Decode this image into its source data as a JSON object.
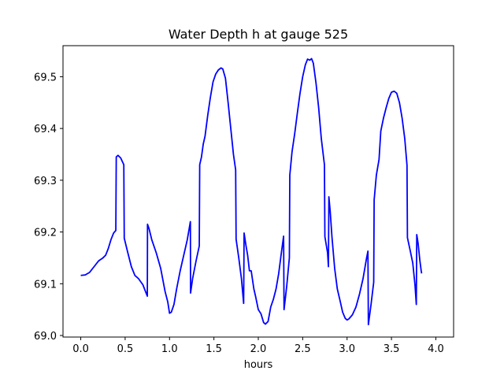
{
  "chart_data": {
    "type": "line",
    "title": "Water Depth h at gauge 525",
    "xlabel": "hours",
    "ylabel": "",
    "xlim": [
      -0.2,
      4.2
    ],
    "ylim": [
      68.997,
      69.56
    ],
    "grid": false,
    "xticks": [
      0.0,
      0.5,
      1.0,
      1.5,
      2.0,
      2.5,
      3.0,
      3.5,
      4.0
    ],
    "xtick_labels": [
      "0.0",
      "0.5",
      "1.0",
      "1.5",
      "2.0",
      "2.5",
      "3.0",
      "3.5",
      "4.0"
    ],
    "yticks": [
      69.0,
      69.1,
      69.2,
      69.3,
      69.4,
      69.5
    ],
    "ytick_labels": [
      "69.0",
      "69.1",
      "69.2",
      "69.3",
      "69.4",
      "69.5"
    ],
    "series": [
      {
        "color": "#0000ff",
        "points": [
          [
            0.0,
            69.116
          ],
          [
            0.05,
            69.117
          ],
          [
            0.1,
            69.122
          ],
          [
            0.15,
            69.133
          ],
          [
            0.2,
            69.144
          ],
          [
            0.25,
            69.15
          ],
          [
            0.28,
            69.155
          ],
          [
            0.31,
            69.168
          ],
          [
            0.34,
            69.185
          ],
          [
            0.37,
            69.198
          ],
          [
            0.395,
            69.203
          ],
          [
            0.4,
            69.345
          ],
          [
            0.42,
            69.348
          ],
          [
            0.45,
            69.343
          ],
          [
            0.485,
            69.33
          ],
          [
            0.49,
            69.188
          ],
          [
            0.53,
            69.16
          ],
          [
            0.57,
            69.133
          ],
          [
            0.61,
            69.116
          ],
          [
            0.65,
            69.11
          ],
          [
            0.7,
            69.098
          ],
          [
            0.75,
            69.076
          ],
          [
            0.752,
            69.215
          ],
          [
            0.77,
            69.206
          ],
          [
            0.8,
            69.185
          ],
          [
            0.85,
            69.16
          ],
          [
            0.9,
            69.13
          ],
          [
            0.95,
            69.085
          ],
          [
            0.98,
            69.065
          ],
          [
            1.0,
            69.043
          ],
          [
            1.02,
            69.045
          ],
          [
            1.05,
            69.06
          ],
          [
            1.08,
            69.09
          ],
          [
            1.12,
            69.125
          ],
          [
            1.16,
            69.155
          ],
          [
            1.2,
            69.185
          ],
          [
            1.235,
            69.22
          ],
          [
            1.237,
            69.082
          ],
          [
            1.26,
            69.11
          ],
          [
            1.3,
            69.145
          ],
          [
            1.335,
            69.173
          ],
          [
            1.34,
            69.33
          ],
          [
            1.36,
            69.345
          ],
          [
            1.38,
            69.37
          ],
          [
            1.4,
            69.385
          ],
          [
            1.43,
            69.425
          ],
          [
            1.46,
            69.46
          ],
          [
            1.49,
            69.49
          ],
          [
            1.52,
            69.505
          ],
          [
            1.55,
            69.513
          ],
          [
            1.58,
            69.517
          ],
          [
            1.6,
            69.515
          ],
          [
            1.63,
            69.497
          ],
          [
            1.66,
            69.45
          ],
          [
            1.69,
            69.4
          ],
          [
            1.72,
            69.35
          ],
          [
            1.745,
            69.32
          ],
          [
            1.75,
            69.186
          ],
          [
            1.78,
            69.15
          ],
          [
            1.81,
            69.11
          ],
          [
            1.835,
            69.062
          ],
          [
            1.84,
            69.198
          ],
          [
            1.86,
            69.175
          ],
          [
            1.88,
            69.155
          ],
          [
            1.9,
            69.125
          ],
          [
            1.92,
            69.125
          ],
          [
            1.95,
            69.09
          ],
          [
            1.97,
            69.075
          ],
          [
            2.0,
            69.05
          ],
          [
            2.03,
            69.042
          ],
          [
            2.06,
            69.025
          ],
          [
            2.08,
            69.022
          ],
          [
            2.11,
            69.027
          ],
          [
            2.14,
            69.055
          ],
          [
            2.17,
            69.07
          ],
          [
            2.2,
            69.09
          ],
          [
            2.23,
            69.12
          ],
          [
            2.26,
            69.16
          ],
          [
            2.285,
            69.192
          ],
          [
            2.29,
            69.05
          ],
          [
            2.32,
            69.095
          ],
          [
            2.35,
            69.15
          ],
          [
            2.355,
            69.31
          ],
          [
            2.38,
            69.355
          ],
          [
            2.41,
            69.39
          ],
          [
            2.44,
            69.43
          ],
          [
            2.47,
            69.468
          ],
          [
            2.5,
            69.5
          ],
          [
            2.53,
            69.523
          ],
          [
            2.555,
            69.534
          ],
          [
            2.58,
            69.532
          ],
          [
            2.6,
            69.535
          ],
          [
            2.62,
            69.526
          ],
          [
            2.65,
            69.488
          ],
          [
            2.68,
            69.44
          ],
          [
            2.71,
            69.38
          ],
          [
            2.745,
            69.33
          ],
          [
            2.75,
            69.191
          ],
          [
            2.78,
            69.16
          ],
          [
            2.79,
            69.133
          ],
          [
            2.795,
            69.268
          ],
          [
            2.81,
            69.24
          ],
          [
            2.83,
            69.19
          ],
          [
            2.86,
            69.13
          ],
          [
            2.89,
            69.09
          ],
          [
            2.92,
            69.068
          ],
          [
            2.95,
            69.045
          ],
          [
            2.98,
            69.033
          ],
          [
            3.0,
            69.03
          ],
          [
            3.02,
            69.032
          ],
          [
            3.06,
            69.04
          ],
          [
            3.1,
            69.055
          ],
          [
            3.14,
            69.08
          ],
          [
            3.18,
            69.11
          ],
          [
            3.22,
            69.15
          ],
          [
            3.235,
            69.163
          ],
          [
            3.24,
            69.021
          ],
          [
            3.27,
            69.06
          ],
          [
            3.3,
            69.103
          ],
          [
            3.305,
            69.262
          ],
          [
            3.33,
            69.31
          ],
          [
            3.36,
            69.34
          ],
          [
            3.38,
            69.395
          ],
          [
            3.41,
            69.42
          ],
          [
            3.44,
            69.44
          ],
          [
            3.47,
            69.458
          ],
          [
            3.5,
            69.47
          ],
          [
            3.53,
            69.472
          ],
          [
            3.56,
            69.468
          ],
          [
            3.59,
            69.45
          ],
          [
            3.62,
            69.42
          ],
          [
            3.65,
            69.38
          ],
          [
            3.675,
            69.329
          ],
          [
            3.68,
            69.189
          ],
          [
            3.71,
            69.165
          ],
          [
            3.74,
            69.14
          ],
          [
            3.765,
            69.098
          ],
          [
            3.78,
            69.06
          ],
          [
            3.785,
            69.195
          ],
          [
            3.8,
            69.178
          ],
          [
            3.82,
            69.145
          ],
          [
            3.835,
            69.125
          ],
          [
            3.84,
            69.12
          ]
        ]
      }
    ]
  }
}
